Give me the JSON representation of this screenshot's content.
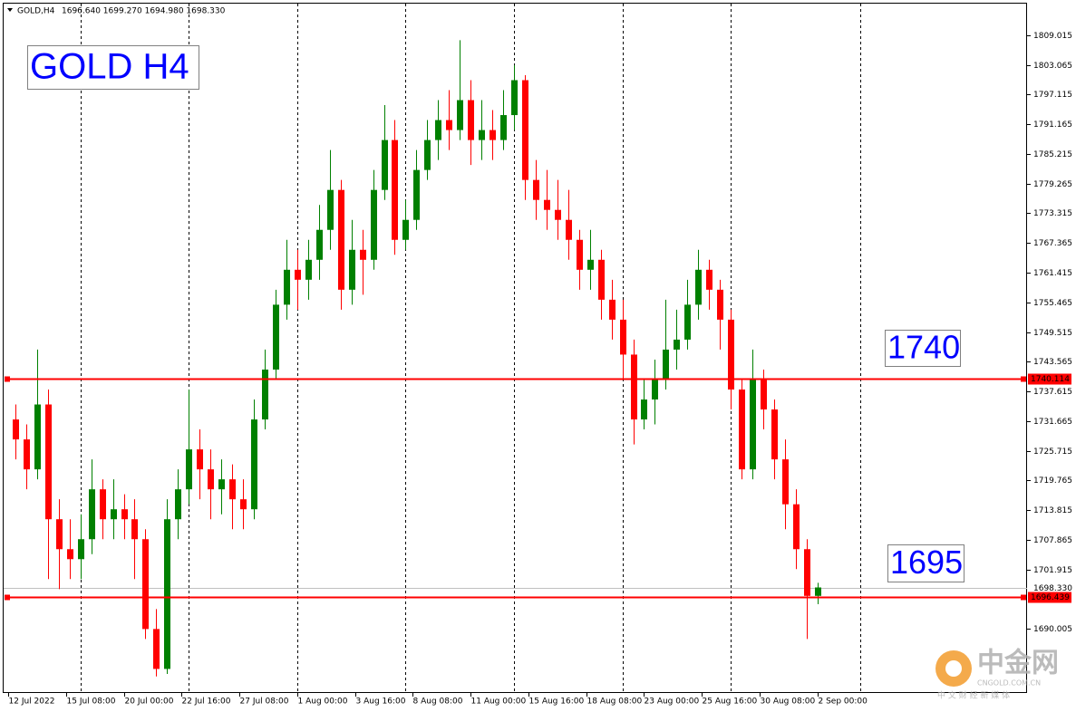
{
  "chart_data": {
    "type": "candlestick",
    "symbol": "GOLD,H4",
    "ohlc_text": "1696.640 1699.270 1694.980 1698.330",
    "x": [
      2,
      5,
      8,
      11,
      14,
      17,
      20,
      23,
      26,
      29,
      32,
      35,
      38,
      41,
      44,
      47,
      50,
      53,
      56,
      59,
      62,
      65,
      68,
      71,
      74,
      77,
      80,
      83,
      86,
      89,
      92,
      95,
      98,
      101,
      104,
      107,
      110,
      113,
      116,
      119,
      122,
      125,
      128,
      131,
      134,
      137,
      140,
      143,
      146,
      149,
      152,
      155,
      158,
      161,
      164,
      167,
      170,
      173,
      176,
      179,
      182,
      185,
      188,
      191,
      194,
      197,
      200,
      203,
      206,
      209,
      212,
      215,
      218,
      221,
      224
    ],
    "open": [
      1732,
      1728,
      1722,
      1735,
      1712,
      1706,
      1704,
      1708,
      1718,
      1712,
      1714,
      1712,
      1708,
      1690,
      1682,
      1712,
      1718,
      1726,
      1722,
      1718,
      1720,
      1716,
      1714,
      1732,
      1742,
      1755,
      1762,
      1760,
      1764,
      1770,
      1778,
      1758,
      1766,
      1764,
      1778,
      1788,
      1768,
      1772,
      1782,
      1788,
      1792,
      1790,
      1796,
      1788,
      1790,
      1788,
      1793,
      1800,
      1780,
      1776,
      1774,
      1772,
      1768,
      1762,
      1764,
      1756,
      1752,
      1745,
      1732,
      1736,
      1740,
      1746,
      1748,
      1755,
      1762,
      1758,
      1752,
      1738,
      1722,
      1740,
      1734,
      1724,
      1715,
      1706,
      1696.64
    ],
    "high": [
      1735,
      1731,
      1746,
      1738,
      1716,
      1712,
      1713,
      1724,
      1720,
      1720,
      1717,
      1716,
      1710,
      1694,
      1716,
      1722,
      1738,
      1730,
      1726,
      1724,
      1723,
      1720,
      1736,
      1746,
      1758,
      1768,
      1766,
      1768,
      1775,
      1786,
      1780,
      1772,
      1770,
      1782,
      1795,
      1792,
      1776,
      1786,
      1792,
      1796,
      1798,
      1808,
      1800,
      1796,
      1794,
      1798,
      1803,
      1801,
      1784,
      1782,
      1780,
      1778,
      1770,
      1770,
      1766,
      1760,
      1756,
      1748,
      1740,
      1744,
      1756,
      1754,
      1760,
      1766,
      1764,
      1760,
      1754,
      1740,
      1746,
      1742,
      1736,
      1728,
      1718,
      1708,
      1699.27
    ],
    "low": [
      1724,
      1718,
      1720,
      1700,
      1698,
      1700,
      1700,
      1705,
      1708,
      1708,
      1708,
      1700,
      1688,
      1680.5,
      1681,
      1708,
      1715,
      1716,
      1712,
      1713,
      1710,
      1710,
      1712,
      1730,
      1740,
      1752,
      1754,
      1756,
      1760,
      1766,
      1754,
      1755,
      1757,
      1762,
      1776,
      1765,
      1766,
      1770,
      1780,
      1784,
      1786,
      1788,
      1783,
      1784,
      1784,
      1786,
      1790,
      1776,
      1772,
      1770,
      1768,
      1764,
      1758,
      1758,
      1752,
      1748,
      1740,
      1727,
      1730,
      1731,
      1738,
      1742,
      1746,
      1752,
      1754,
      1746,
      1734,
      1720,
      1720,
      1730,
      1720,
      1710,
      1702,
      1688,
      1694.98
    ],
    "close": [
      1728,
      1722,
      1735,
      1712,
      1706,
      1704,
      1708,
      1718,
      1712,
      1714,
      1712,
      1708,
      1690,
      1682,
      1712,
      1718,
      1726,
      1722,
      1718,
      1720,
      1716,
      1714,
      1732,
      1742,
      1755,
      1762,
      1760,
      1764,
      1770,
      1778,
      1758,
      1766,
      1764,
      1778,
      1788,
      1768,
      1772,
      1782,
      1788,
      1792,
      1790,
      1796,
      1788,
      1790,
      1788,
      1793,
      1800,
      1780,
      1776,
      1774,
      1772,
      1768,
      1762,
      1764,
      1756,
      1752,
      1745,
      1732,
      1736,
      1740,
      1746,
      1748,
      1755,
      1762,
      1758,
      1752,
      1738,
      1722,
      1740,
      1734,
      1724,
      1715,
      1706,
      1696.64,
      1698.33
    ],
    "colors": {
      "up": "#008000",
      "down": "#ff0000",
      "level": "#ff0000",
      "bid": "#c0c0c0"
    },
    "xlim": [
      -1.25,
      282
    ],
    "xticks": [
      {
        "value": 0,
        "label": "12 Jul 2022"
      },
      {
        "value": 16,
        "label": "15 Jul 08:00"
      },
      {
        "value": 32,
        "label": "20 Jul 00:00"
      },
      {
        "value": 48,
        "label": "22 Jul 16:00"
      },
      {
        "value": 64,
        "label": "27 Jul 08:00"
      },
      {
        "value": 80,
        "label": "1 Aug 00:00"
      },
      {
        "value": 96,
        "label": "3 Aug 16:00"
      },
      {
        "value": 112,
        "label": "8 Aug 08:00"
      },
      {
        "value": 128,
        "label": "11 Aug 00:00"
      },
      {
        "value": 144,
        "label": "15 Aug 16:00"
      },
      {
        "value": 160,
        "label": "18 Aug 08:00"
      },
      {
        "value": 176,
        "label": "23 Aug 00:00"
      },
      {
        "value": 192,
        "label": "25 Aug 16:00"
      },
      {
        "value": 208,
        "label": "30 Aug 08:00"
      },
      {
        "value": 224,
        "label": "2 Sep 00:00"
      }
    ],
    "x_grid": [
      20,
      50,
      80,
      110,
      140,
      170,
      200,
      235.75
    ],
    "ylim": [
      1677.18,
      1815.34
    ],
    "yticks": [
      1809.015,
      1803.065,
      1797.115,
      1791.165,
      1785.215,
      1779.265,
      1773.315,
      1767.365,
      1761.415,
      1755.465,
      1749.515,
      1743.565,
      1737.615,
      1731.665,
      1725.715,
      1719.765,
      1713.815,
      1707.865,
      1701.915,
      1690.005
    ],
    "levels": [
      {
        "value": 1740.114,
        "label": "1740.114"
      },
      {
        "value": 1696.439,
        "label": "1696.439"
      }
    ],
    "bid": {
      "value": 1698.33,
      "label": "1698.330"
    },
    "annotations": [
      {
        "text": "GOLD H4"
      },
      {
        "text": "1740"
      },
      {
        "text": "1695"
      }
    ],
    "watermark": {
      "brand": "中金网",
      "domain": "CNGOLD.COM.CN",
      "slogan": "中 文 财 经 新 媒 体"
    }
  }
}
